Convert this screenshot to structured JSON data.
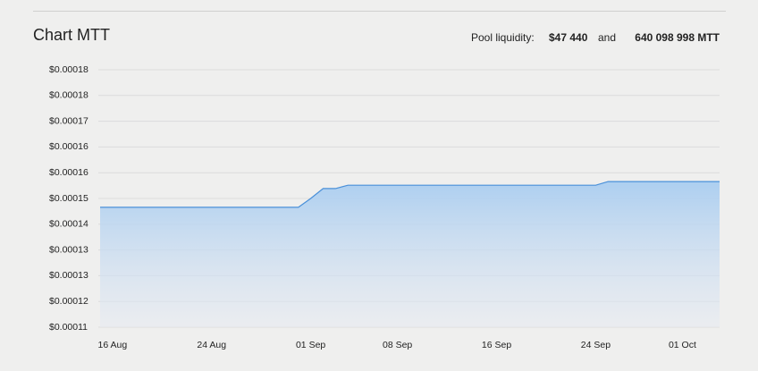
{
  "chart_data": {
    "type": "area",
    "title": "Chart MTT",
    "categories": [
      null,
      "16 Aug",
      null,
      null,
      null,
      null,
      null,
      null,
      null,
      "24 Aug",
      null,
      null,
      null,
      null,
      null,
      null,
      null,
      "01 Sep",
      null,
      null,
      null,
      null,
      null,
      null,
      "08 Sep",
      null,
      null,
      null,
      null,
      null,
      null,
      null,
      "16 Sep",
      null,
      null,
      null,
      null,
      null,
      null,
      null,
      "24 Sep",
      null,
      null,
      null,
      null,
      null,
      null,
      "01 Oct",
      null,
      null,
      null
    ],
    "values": [
      0.0001461,
      0.0001461,
      0.0001461,
      0.0001461,
      0.0001461,
      0.0001461,
      0.0001461,
      0.0001461,
      0.0001461,
      0.0001461,
      0.0001461,
      0.0001461,
      0.0001461,
      0.0001461,
      0.0001461,
      0.0001461,
      0.0001461,
      0.0001485,
      0.0001512,
      0.0001512,
      0.0001521,
      0.0001521,
      0.0001521,
      0.0001521,
      0.0001521,
      0.0001521,
      0.0001521,
      0.0001521,
      0.0001521,
      0.0001521,
      0.0001521,
      0.0001521,
      0.0001521,
      0.0001521,
      0.0001521,
      0.0001521,
      0.0001521,
      0.0001521,
      0.0001521,
      0.0001521,
      0.0001521,
      0.0001531,
      0.0001531,
      0.0001531,
      0.0001531,
      0.0001531,
      0.0001531,
      0.0001531,
      0.0001531,
      0.0001531,
      0.0001531
    ],
    "color": "#4a90d9",
    "ylim": [
      0.0001135,
      0.0001835
    ],
    "yticks": [
      {
        "value": 0.0001135,
        "label": "$0.00011"
      },
      {
        "value": 0.0001205,
        "label": "$0.00012"
      },
      {
        "value": 0.0001275,
        "label": "$0.00013"
      },
      {
        "value": 0.0001345,
        "label": "$0.00013"
      },
      {
        "value": 0.0001415,
        "label": "$0.00014"
      },
      {
        "value": 0.0001485,
        "label": "$0.00015"
      },
      {
        "value": 0.0001555,
        "label": "$0.00016"
      },
      {
        "value": 0.0001625,
        "label": "$0.00016"
      },
      {
        "value": 0.0001695,
        "label": "$0.00017"
      },
      {
        "value": 0.0001765,
        "label": "$0.00018"
      },
      {
        "value": 0.0001835,
        "label": "$0.00018"
      }
    ],
    "grid": true
  },
  "pool": {
    "label": "Pool liquidity:",
    "usd": "$47 440",
    "joiner": "and",
    "tokens": "640 098 998 MTT"
  }
}
